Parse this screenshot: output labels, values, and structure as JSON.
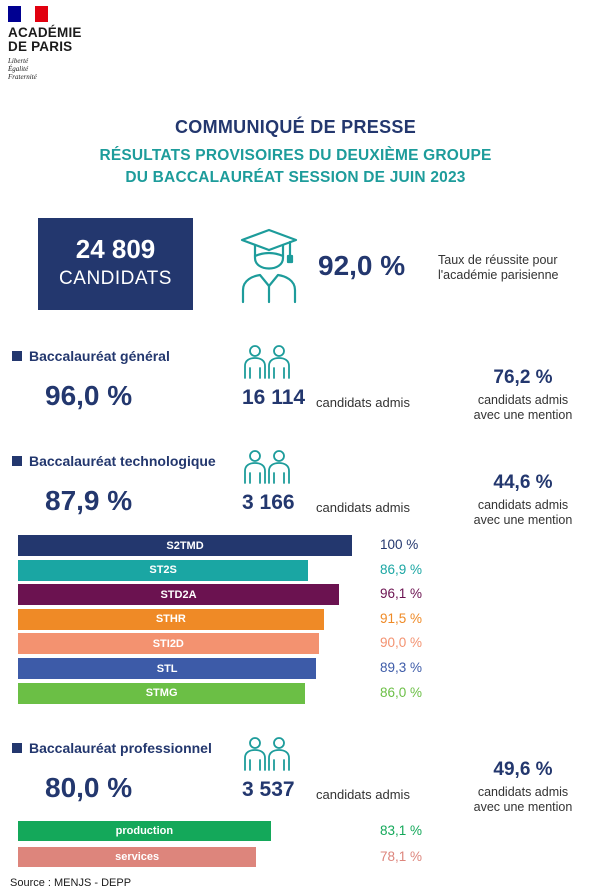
{
  "header": {
    "org_line1": "ACADÉMIE",
    "org_line2": "DE PARIS",
    "motto": [
      "Liberté",
      "Égalité",
      "Fraternité"
    ],
    "flag_colors": [
      "#000091",
      "#ffffff",
      "#e1000f"
    ]
  },
  "title": "COMMUNIQUÉ DE PRESSE",
  "subtitle_line1": "RÉSULTATS PROVISOIRES DU DEUXIÈME GROUPE",
  "subtitle_line2": "DU BACCALAURÉAT SESSION DE JUIN 2023",
  "summary": {
    "candidates_number": "24 809",
    "candidates_label": "CANDIDATS",
    "success_rate": "92,0 %",
    "success_desc_line1": "Taux de réussite pour",
    "success_desc_line2": "l'académie parisienne",
    "icon": "graduate-icon"
  },
  "sections": [
    {
      "title": "Baccalauréat général",
      "rate": "96,0 %",
      "admis": "16 114",
      "admis_label": "candidats admis",
      "mention_rate": "76,2 %",
      "mention_line1": "candidats admis",
      "mention_line2": "avec une mention",
      "icon": "people-icon"
    },
    {
      "title": "Baccalauréat technologique",
      "rate": "87,9 %",
      "admis": "3 166",
      "admis_label": "candidats admis",
      "mention_rate": "44,6 %",
      "mention_line1": "candidats admis",
      "mention_line2": "avec une mention",
      "icon": "people-icon"
    },
    {
      "title": "Baccalauréat professionnel",
      "rate": "80,0 %",
      "admis": "3 537",
      "admis_label": "candidats admis",
      "mention_rate": "49,6 %",
      "mention_line1": "candidats admis",
      "mention_line2": "avec une mention",
      "icon": "people-icon"
    }
  ],
  "chart_data": [
    {
      "type": "bar",
      "orientation": "horizontal",
      "categories": [
        "S2TMD",
        "ST2S",
        "STD2A",
        "STHR",
        "STI2D",
        "STL",
        "STMG"
      ],
      "values": [
        100,
        86.9,
        96.1,
        91.5,
        90.0,
        89.3,
        86.0
      ],
      "value_labels": [
        "100 %",
        "86,9 %",
        "96,1 %",
        "91,5 %",
        "90,0 %",
        "89,3 %",
        "86,0 %"
      ],
      "colors": [
        "#23376e",
        "#1aa6a3",
        "#6b1250",
        "#ef8a26",
        "#f39270",
        "#3d5ba8",
        "#6bbf45"
      ],
      "value_colors": [
        "#23376e",
        "#1aa6a3",
        "#6b1250",
        "#ef8a26",
        "#f39270",
        "#3d5ba8",
        "#6bbf45"
      ]
    },
    {
      "type": "bar",
      "orientation": "horizontal",
      "categories": [
        "production",
        "services"
      ],
      "values": [
        83.1,
        78.1
      ],
      "value_labels": [
        "83,1 %",
        "78,1 %"
      ],
      "colors": [
        "#14a85a",
        "#dd857c"
      ],
      "value_colors": [
        "#14a85a",
        "#dd857c"
      ]
    }
  ],
  "source": "Source : MENJS - DEPP"
}
